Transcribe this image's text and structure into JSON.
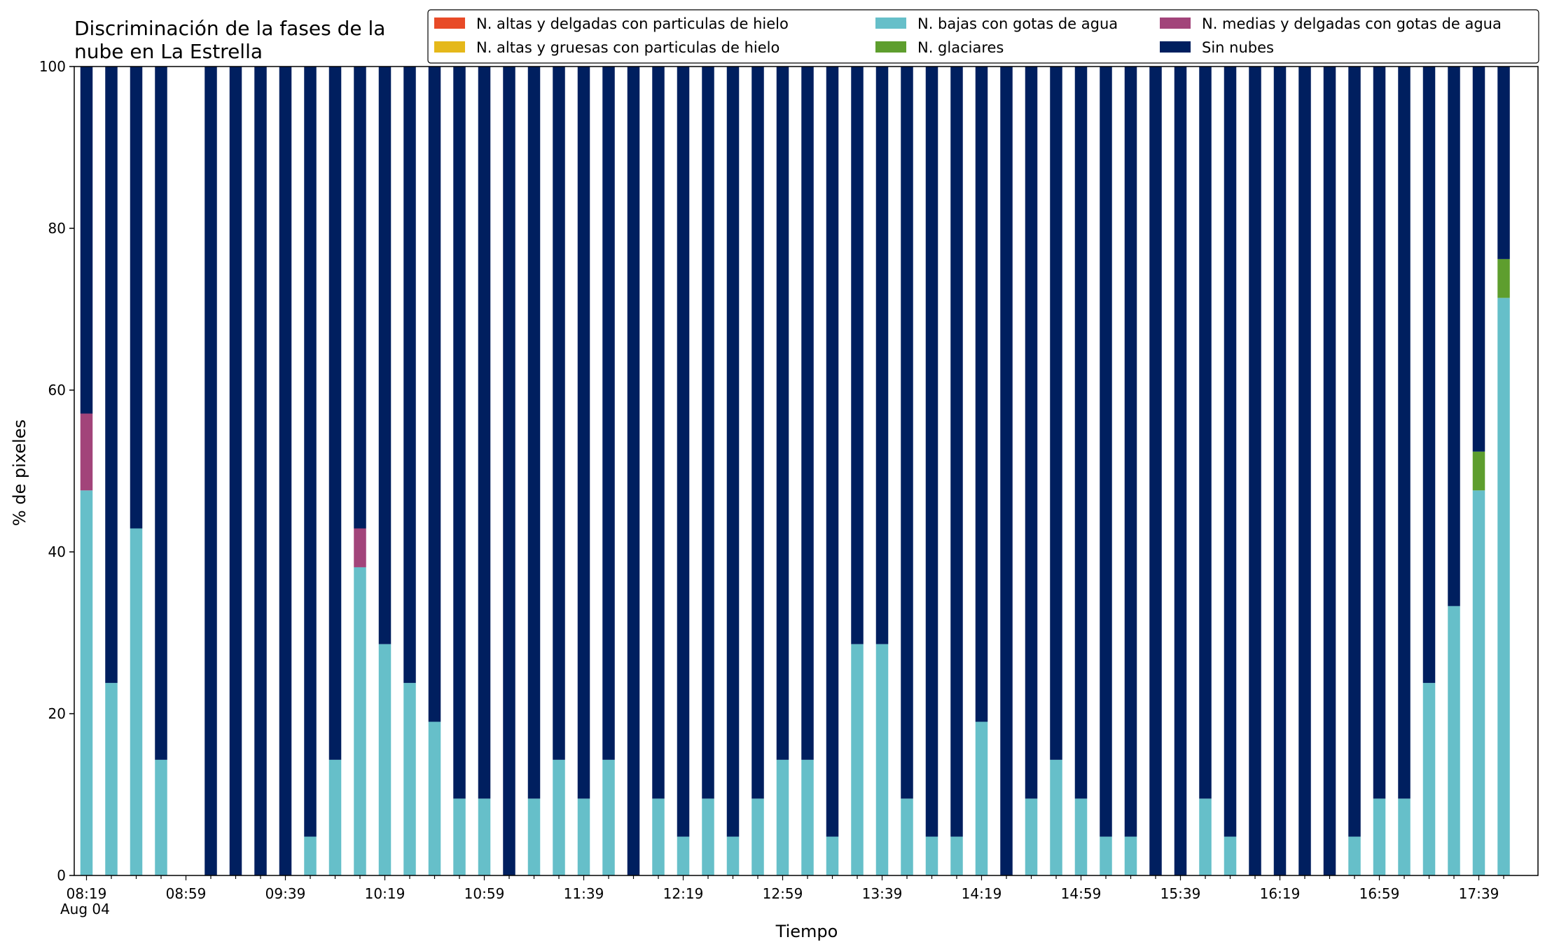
{
  "chart_data": {
    "type": "bar",
    "stacked": true,
    "title_lines": [
      "Discriminación de la fases de la",
      "nube en La Estrella"
    ],
    "xlabel": "Tiempo",
    "ylabel": "% de pixeles",
    "ylim": [
      0,
      100
    ],
    "yticks": [
      "0",
      "20",
      "40",
      "60",
      "80",
      "100"
    ],
    "x_tick_labels": [
      "08:19",
      "08:59",
      "09:39",
      "10:19",
      "10:59",
      "11:39",
      "12:19",
      "12:59",
      "13:39",
      "14:19",
      "14:59",
      "15:39",
      "16:19",
      "16:59",
      "17:39"
    ],
    "x_date_label": "Aug 04",
    "grid": false,
    "legend_position": "top-right",
    "categories": [
      "08:19",
      "08:29",
      "08:39",
      "08:49",
      "08:59",
      "09:09",
      "09:19",
      "09:29",
      "09:39",
      "09:49",
      "09:59",
      "10:09",
      "10:19",
      "10:29",
      "10:39",
      "10:49",
      "10:59",
      "11:09",
      "11:19",
      "11:29",
      "11:39",
      "11:49",
      "11:59",
      "12:09",
      "12:19",
      "12:29",
      "12:39",
      "12:49",
      "12:59",
      "13:09",
      "13:19",
      "13:29",
      "13:39",
      "13:49",
      "13:59",
      "14:09",
      "14:19",
      "14:29",
      "14:39",
      "14:49",
      "14:59",
      "15:09",
      "15:19",
      "15:29",
      "15:39",
      "15:49",
      "15:59",
      "16:09",
      "16:19",
      "16:29",
      "16:39",
      "16:49",
      "16:59",
      "17:09",
      "17:19",
      "17:29",
      "17:39",
      "17:49"
    ],
    "series": [
      {
        "name": "N. altas y delgadas con particulas de hielo",
        "color": "#e84a27",
        "values": [
          0,
          0,
          0,
          0,
          0,
          0,
          0,
          0,
          0,
          0,
          0,
          0,
          0,
          0,
          0,
          0,
          0,
          0,
          0,
          0,
          0,
          0,
          0,
          0,
          0,
          0,
          0,
          0,
          0,
          0,
          0,
          0,
          0,
          0,
          0,
          0,
          0,
          0,
          0,
          0,
          0,
          0,
          0,
          0,
          0,
          0,
          0,
          0,
          0,
          0,
          0,
          0,
          0,
          0,
          0,
          0,
          0,
          0
        ]
      },
      {
        "name": "N. altas y gruesas con particulas de hielo",
        "color": "#e5b81a",
        "values": [
          0,
          0,
          0,
          0,
          0,
          0,
          0,
          0,
          0,
          0,
          0,
          0,
          0,
          0,
          0,
          0,
          0,
          0,
          0,
          0,
          0,
          0,
          0,
          0,
          0,
          0,
          0,
          0,
          0,
          0,
          0,
          0,
          0,
          0,
          0,
          0,
          0,
          0,
          0,
          0,
          0,
          0,
          0,
          0,
          0,
          0,
          0,
          0,
          0,
          0,
          0,
          0,
          0,
          0,
          0,
          0,
          0,
          0
        ]
      },
      {
        "name": "N. bajas con gotas de agua",
        "color": "#66bfc9",
        "values": [
          47.6,
          23.8,
          42.9,
          14.3,
          null,
          0,
          0,
          0,
          0,
          4.8,
          14.3,
          38.1,
          28.6,
          23.8,
          19.0,
          9.5,
          9.5,
          0,
          9.5,
          14.3,
          9.5,
          14.3,
          0,
          9.5,
          4.8,
          9.5,
          4.8,
          9.5,
          14.3,
          14.3,
          4.8,
          28.6,
          28.6,
          9.5,
          4.8,
          4.8,
          19.0,
          0,
          9.5,
          14.3,
          9.5,
          4.8,
          4.8,
          0,
          0,
          9.5,
          4.8,
          0,
          0,
          0,
          0,
          4.8,
          9.5,
          9.5,
          23.8,
          33.3,
          47.6,
          71.4
        ]
      },
      {
        "name": "N. glaciares",
        "color": "#5e9e2e",
        "values": [
          0,
          0,
          0,
          0,
          null,
          0,
          0,
          0,
          0,
          0,
          0,
          0,
          0,
          0,
          0,
          0,
          0,
          0,
          0,
          0,
          0,
          0,
          0,
          0,
          0,
          0,
          0,
          0,
          0,
          0,
          0,
          0,
          0,
          0,
          0,
          0,
          0,
          0,
          0,
          0,
          0,
          0,
          0,
          0,
          0,
          0,
          0,
          0,
          0,
          0,
          0,
          0,
          0,
          0,
          0,
          0,
          4.8,
          4.8
        ]
      },
      {
        "name": "N. medias y delgadas con gotas de agua",
        "color": "#a2447a",
        "values": [
          9.5,
          0,
          0,
          0,
          null,
          0,
          0,
          0,
          0,
          0,
          0,
          4.8,
          0,
          0,
          0,
          0,
          0,
          0,
          0,
          0,
          0,
          0,
          0,
          0,
          0,
          0,
          0,
          0,
          0,
          0,
          0,
          0,
          0,
          0,
          0,
          0,
          0,
          0,
          0,
          0,
          0,
          0,
          0,
          0,
          0,
          0,
          0,
          0,
          0,
          0,
          0,
          0,
          0,
          0,
          0,
          0,
          0,
          0
        ]
      },
      {
        "name": "Sin nubes",
        "color": "#001f5f",
        "values": [
          42.9,
          76.2,
          57.1,
          85.7,
          null,
          100,
          100,
          100,
          100,
          95.2,
          85.7,
          57.1,
          71.4,
          76.2,
          81.0,
          90.5,
          90.5,
          100,
          90.5,
          85.7,
          90.5,
          85.7,
          100,
          90.5,
          95.2,
          90.5,
          95.2,
          90.5,
          85.7,
          85.7,
          95.2,
          71.4,
          71.4,
          90.5,
          95.2,
          95.2,
          81.0,
          100,
          90.5,
          85.7,
          90.5,
          95.2,
          95.2,
          100,
          100,
          90.5,
          95.2,
          100,
          100,
          100,
          100,
          95.2,
          90.5,
          90.5,
          76.2,
          66.7,
          47.6,
          23.8
        ]
      }
    ]
  }
}
